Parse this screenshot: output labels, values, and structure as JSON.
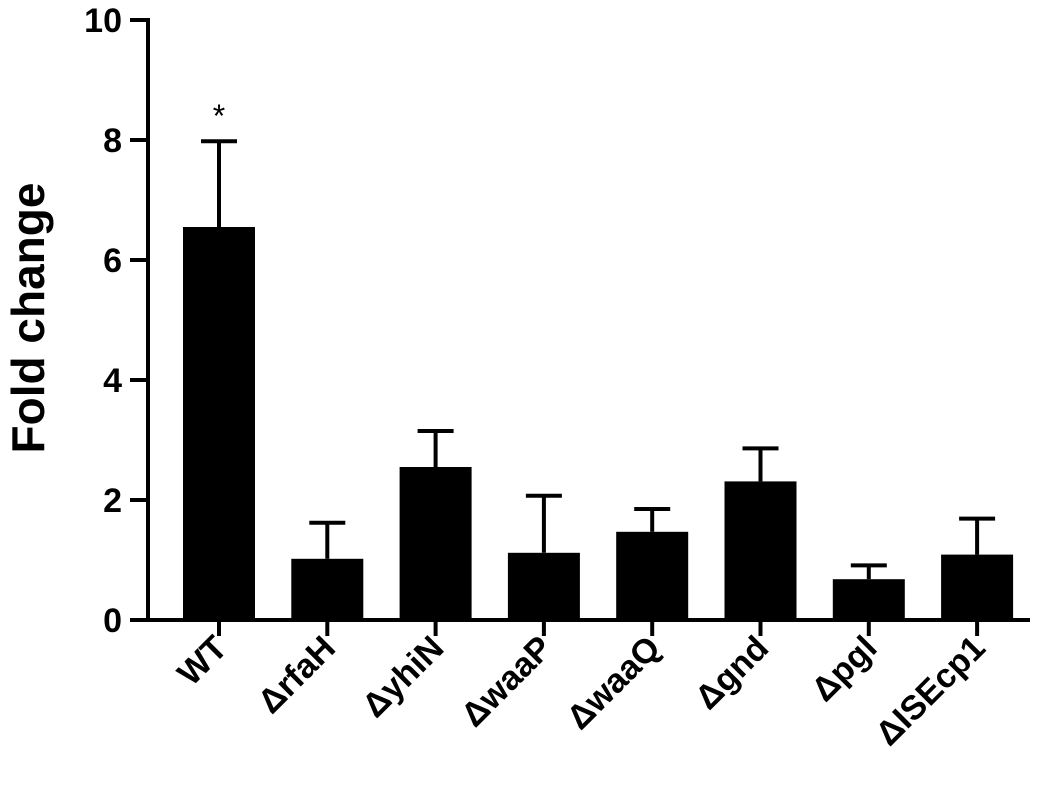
{
  "chart_data": {
    "type": "bar",
    "title": "",
    "xlabel": "",
    "ylabel": "Fold change",
    "ylim": [
      0,
      10
    ],
    "yticks": [
      0,
      2,
      4,
      6,
      8,
      10
    ],
    "ytick_labels": [
      "0",
      "2",
      "4",
      "6",
      "8",
      "10"
    ],
    "categories": [
      "WT",
      "ΔrfaH",
      "ΔyhiN",
      "ΔwaaP",
      "ΔwaaQ",
      "Δgnd",
      "Δpgl",
      "ΔISEcp1"
    ],
    "values": [
      6.55,
      1.02,
      2.55,
      1.12,
      1.47,
      2.31,
      0.68,
      1.09
    ],
    "errors": [
      1.43,
      0.6,
      0.6,
      0.95,
      0.38,
      0.55,
      0.23,
      0.6
    ],
    "annotations": [
      {
        "category": "WT",
        "text": "*"
      }
    ],
    "bar_color": "#000000",
    "grid": false,
    "legend": "none"
  }
}
